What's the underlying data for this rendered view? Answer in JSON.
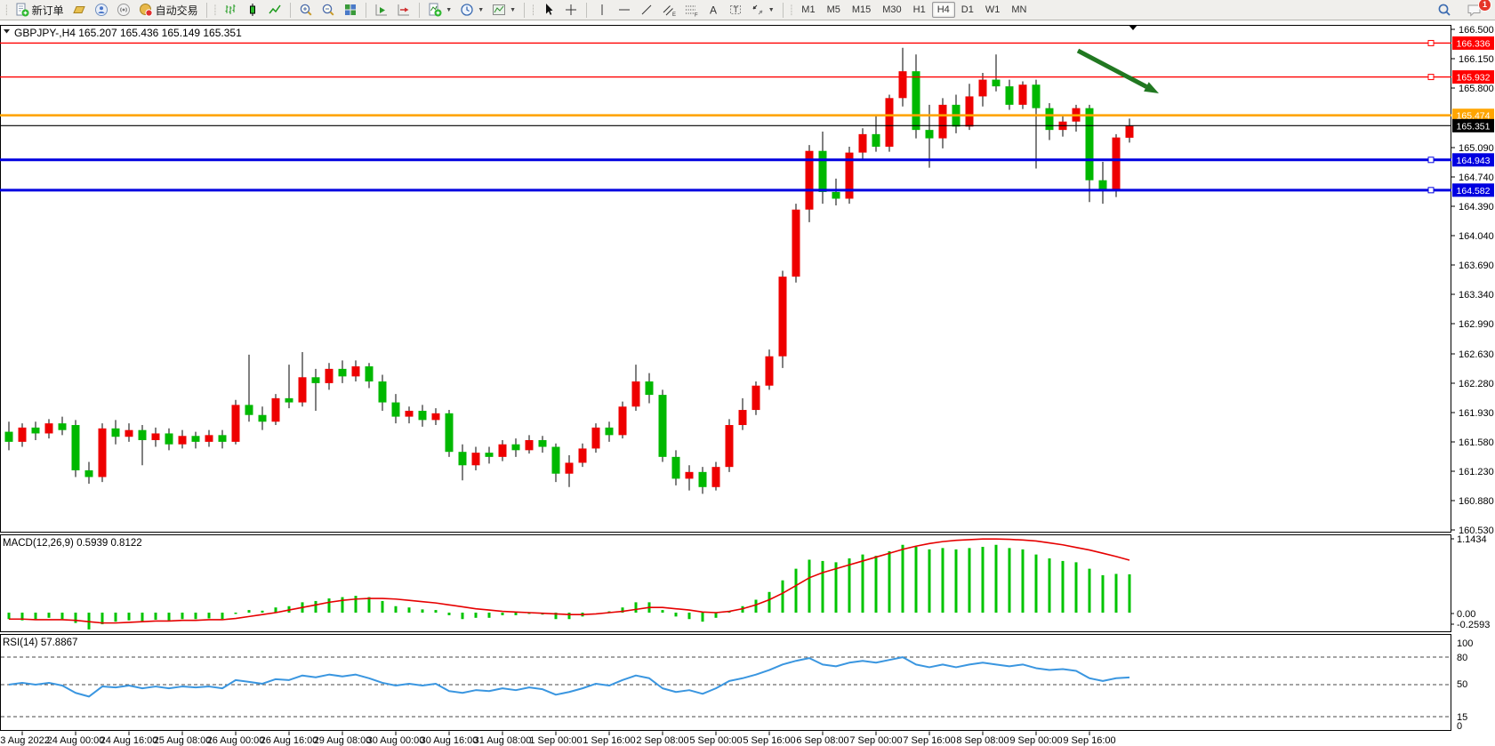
{
  "toolbar": {
    "new_order_label": "新订单",
    "autotrade_label": "自动交易",
    "timeframes": [
      "M1",
      "M5",
      "M15",
      "M30",
      "H1",
      "H4",
      "D1",
      "W1",
      "MN"
    ],
    "active_timeframe": "H4",
    "notification_count": "1"
  },
  "chart": {
    "title": "GBPJPY-,H4  165.207 165.436 165.149 165.351",
    "macd_label": "MACD(12,26,9) 0.5939 0.8122",
    "rsi_label": "RSI(14) 57.8867"
  },
  "chart_data": {
    "type": "candlestick",
    "symbol": "GBPJPY-",
    "timeframe": "H4",
    "ohlc_current": {
      "open": 165.207,
      "high": 165.436,
      "low": 165.149,
      "close": 165.351
    },
    "colors": {
      "bull": "#ee0000",
      "bear": "#00b800",
      "wick": "#000000",
      "macd_bar": "#00c400",
      "macd_signal": "#e60000",
      "rsi_line": "#3a96e0",
      "annotation_arrow": "#217821",
      "level_red": "#ff0000",
      "level_orange": "#ffa500",
      "level_blue": "#0000e0",
      "current_price": "#000000"
    },
    "price_axis_ticks": [
      "166.500",
      "166.150",
      "165.800",
      "165.090",
      "164.740",
      "164.390",
      "164.040",
      "163.690",
      "163.340",
      "162.990",
      "162.630",
      "162.280",
      "161.930",
      "161.580",
      "161.230",
      "160.880",
      "160.530"
    ],
    "dates": [
      "23 Aug 2022",
      "24 Aug 00:00",
      "24 Aug 16:00",
      "25 Aug 08:00",
      "26 Aug 00:00",
      "26 Aug 16:00",
      "29 Aug 08:00",
      "30 Aug 00:00",
      "30 Aug 16:00",
      "31 Aug 08:00",
      "1 Sep 00:00",
      "1 Sep 16:00",
      "2 Sep 08:00",
      "5 Sep 00:00",
      "5 Sep 16:00",
      "6 Sep 08:00",
      "7 Sep 00:00",
      "7 Sep 16:00",
      "8 Sep 08:00",
      "9 Sep 00:00",
      "9 Sep 16:00"
    ],
    "levels": [
      {
        "label": "166.336",
        "value": 166.336,
        "color": "#ff0000",
        "width": 1.4,
        "handle": true
      },
      {
        "label": "165.932",
        "value": 165.932,
        "color": "#ff0000",
        "width": 1.4,
        "handle": true
      },
      {
        "label": "165.474",
        "value": 165.474,
        "color": "#ffa500",
        "width": 2.6,
        "handle": false
      },
      {
        "label": "165.351",
        "value": 165.351,
        "color": "#000000",
        "width": 1.1,
        "handle": false
      },
      {
        "label": "164.943",
        "value": 164.943,
        "color": "#0000e0",
        "width": 3,
        "handle": true
      },
      {
        "label": "164.582",
        "value": 164.582,
        "color": "#0000e0",
        "width": 3,
        "handle": true
      }
    ],
    "candles": [
      [
        161.7,
        161.82,
        161.48,
        161.58
      ],
      [
        161.58,
        161.8,
        161.52,
        161.75
      ],
      [
        161.75,
        161.82,
        161.6,
        161.68
      ],
      [
        161.68,
        161.85,
        161.62,
        161.8
      ],
      [
        161.8,
        161.88,
        161.66,
        161.72
      ],
      [
        161.78,
        161.84,
        161.16,
        161.24
      ],
      [
        161.24,
        161.34,
        161.08,
        161.16
      ],
      [
        161.16,
        161.8,
        161.1,
        161.74
      ],
      [
        161.74,
        161.84,
        161.55,
        161.64
      ],
      [
        161.64,
        161.8,
        161.58,
        161.72
      ],
      [
        161.72,
        161.78,
        161.3,
        161.6
      ],
      [
        161.6,
        161.75,
        161.52,
        161.68
      ],
      [
        161.68,
        161.74,
        161.48,
        161.55
      ],
      [
        161.55,
        161.72,
        161.5,
        161.65
      ],
      [
        161.65,
        161.7,
        161.5,
        161.58
      ],
      [
        161.58,
        161.72,
        161.52,
        161.66
      ],
      [
        161.66,
        161.72,
        161.5,
        161.58
      ],
      [
        161.58,
        162.08,
        161.55,
        162.02
      ],
      [
        162.02,
        162.62,
        161.82,
        161.9
      ],
      [
        161.9,
        162.0,
        161.72,
        161.82
      ],
      [
        161.82,
        162.15,
        161.78,
        162.1
      ],
      [
        162.1,
        162.5,
        161.98,
        162.05
      ],
      [
        162.05,
        162.65,
        162.0,
        162.35
      ],
      [
        162.35,
        162.45,
        161.95,
        162.28
      ],
      [
        162.28,
        162.52,
        162.2,
        162.45
      ],
      [
        162.45,
        162.55,
        162.28,
        162.36
      ],
      [
        162.36,
        162.55,
        162.3,
        162.48
      ],
      [
        162.48,
        162.52,
        162.22,
        162.3
      ],
      [
        162.3,
        162.38,
        161.95,
        162.05
      ],
      [
        162.05,
        162.15,
        161.8,
        161.88
      ],
      [
        161.88,
        162.0,
        161.8,
        161.95
      ],
      [
        161.95,
        162.02,
        161.76,
        161.84
      ],
      [
        161.84,
        161.98,
        161.78,
        161.92
      ],
      [
        161.92,
        161.96,
        161.4,
        161.46
      ],
      [
        161.46,
        161.55,
        161.12,
        161.3
      ],
      [
        161.3,
        161.52,
        161.24,
        161.45
      ],
      [
        161.45,
        161.52,
        161.32,
        161.4
      ],
      [
        161.4,
        161.6,
        161.35,
        161.55
      ],
      [
        161.55,
        161.62,
        161.4,
        161.48
      ],
      [
        161.48,
        161.66,
        161.44,
        161.6
      ],
      [
        161.6,
        161.65,
        161.45,
        161.52
      ],
      [
        161.52,
        161.56,
        161.1,
        161.2
      ],
      [
        161.2,
        161.42,
        161.04,
        161.33
      ],
      [
        161.33,
        161.56,
        161.28,
        161.5
      ],
      [
        161.5,
        161.8,
        161.45,
        161.75
      ],
      [
        161.75,
        161.82,
        161.58,
        161.66
      ],
      [
        161.66,
        162.06,
        161.62,
        162.0
      ],
      [
        162.0,
        162.5,
        161.95,
        162.3
      ],
      [
        162.3,
        162.4,
        162.04,
        162.14
      ],
      [
        162.14,
        162.2,
        161.34,
        161.4
      ],
      [
        161.4,
        161.48,
        161.06,
        161.14
      ],
      [
        161.14,
        161.3,
        161.0,
        161.22
      ],
      [
        161.22,
        161.28,
        160.96,
        161.04
      ],
      [
        161.04,
        161.34,
        161.0,
        161.28
      ],
      [
        161.28,
        161.85,
        161.22,
        161.78
      ],
      [
        161.78,
        162.1,
        161.72,
        161.96
      ],
      [
        161.96,
        162.3,
        161.9,
        162.25
      ],
      [
        162.25,
        162.68,
        162.2,
        162.6
      ],
      [
        162.6,
        163.62,
        162.46,
        163.55
      ],
      [
        163.55,
        164.42,
        163.48,
        164.35
      ],
      [
        164.35,
        165.12,
        164.2,
        165.05
      ],
      [
        165.05,
        165.28,
        164.42,
        164.56
      ],
      [
        164.56,
        164.72,
        164.4,
        164.48
      ],
      [
        164.48,
        165.1,
        164.42,
        165.03
      ],
      [
        165.03,
        165.32,
        164.94,
        165.25
      ],
      [
        165.25,
        165.46,
        165.04,
        165.1
      ],
      [
        165.1,
        165.72,
        165.04,
        165.68
      ],
      [
        165.68,
        166.28,
        165.58,
        166.0
      ],
      [
        166.0,
        166.2,
        165.2,
        165.3
      ],
      [
        165.3,
        165.6,
        164.85,
        165.2
      ],
      [
        165.2,
        165.68,
        165.08,
        165.6
      ],
      [
        165.6,
        165.72,
        165.26,
        165.34
      ],
      [
        165.34,
        165.85,
        165.3,
        165.7
      ],
      [
        165.7,
        165.98,
        165.58,
        165.9
      ],
      [
        165.9,
        166.2,
        165.76,
        165.82
      ],
      [
        165.82,
        165.9,
        165.54,
        165.6
      ],
      [
        165.6,
        165.88,
        165.55,
        165.84
      ],
      [
        165.84,
        165.9,
        164.84,
        165.56
      ],
      [
        165.56,
        165.62,
        165.18,
        165.3
      ],
      [
        165.3,
        165.48,
        165.22,
        165.4
      ],
      [
        165.4,
        165.6,
        165.28,
        165.56
      ],
      [
        165.56,
        165.6,
        164.44,
        164.7
      ],
      [
        164.7,
        164.92,
        164.42,
        164.58
      ],
      [
        164.58,
        165.25,
        164.5,
        165.21
      ],
      [
        165.207,
        165.436,
        165.149,
        165.351
      ]
    ],
    "macd": {
      "label": "MACD(12,26,9) 0.5939 0.8122",
      "axis_ticks": [
        "1.1434",
        "0.00",
        "-0.2593"
      ],
      "histogram": [
        -0.1,
        -0.12,
        -0.1,
        -0.08,
        -0.1,
        -0.16,
        -0.26,
        -0.18,
        -0.14,
        -0.12,
        -0.13,
        -0.11,
        -0.12,
        -0.1,
        -0.1,
        -0.09,
        -0.1,
        -0.02,
        0.04,
        0.03,
        0.08,
        0.1,
        0.16,
        0.18,
        0.22,
        0.24,
        0.26,
        0.24,
        0.18,
        0.1,
        0.08,
        0.05,
        0.04,
        -0.04,
        -0.1,
        -0.08,
        -0.08,
        -0.04,
        -0.04,
        -0.02,
        -0.03,
        -0.1,
        -0.1,
        -0.06,
        0.0,
        0.02,
        0.08,
        0.16,
        0.16,
        0.04,
        -0.06,
        -0.1,
        -0.14,
        -0.08,
        0.02,
        0.1,
        0.2,
        0.32,
        0.5,
        0.68,
        0.82,
        0.8,
        0.78,
        0.84,
        0.9,
        0.88,
        0.95,
        1.05,
        1.02,
        0.98,
        1.0,
        0.98,
        1.0,
        1.02,
        1.05,
        1.0,
        0.98,
        0.9,
        0.84,
        0.8,
        0.78,
        0.68,
        0.58,
        0.6,
        0.5939
      ],
      "signal": [
        -0.1,
        -0.1,
        -0.11,
        -0.11,
        -0.11,
        -0.12,
        -0.14,
        -0.16,
        -0.16,
        -0.15,
        -0.14,
        -0.13,
        -0.13,
        -0.12,
        -0.12,
        -0.11,
        -0.11,
        -0.09,
        -0.06,
        -0.03,
        0.0,
        0.04,
        0.08,
        0.12,
        0.16,
        0.19,
        0.21,
        0.22,
        0.22,
        0.21,
        0.19,
        0.17,
        0.15,
        0.12,
        0.09,
        0.06,
        0.04,
        0.02,
        0.01,
        0.0,
        -0.01,
        -0.02,
        -0.03,
        -0.03,
        -0.02,
        0.0,
        0.02,
        0.05,
        0.08,
        0.08,
        0.06,
        0.04,
        0.01,
        0.0,
        0.02,
        0.06,
        0.12,
        0.2,
        0.3,
        0.42,
        0.54,
        0.62,
        0.68,
        0.74,
        0.8,
        0.86,
        0.92,
        0.98,
        1.03,
        1.07,
        1.1,
        1.12,
        1.13,
        1.14,
        1.14,
        1.135,
        1.125,
        1.11,
        1.08,
        1.05,
        1.01,
        0.97,
        0.92,
        0.87,
        0.8122
      ]
    },
    "rsi": {
      "label": "RSI(14) 57.8867",
      "axis_ticks": [
        "100",
        "80",
        "50",
        "15",
        "0"
      ],
      "levels": [
        80,
        50,
        15
      ],
      "values": [
        50,
        52,
        50,
        52,
        49,
        41,
        37,
        48,
        47,
        49,
        46,
        48,
        46,
        48,
        47,
        48,
        46,
        55,
        53,
        51,
        56,
        55,
        60,
        58,
        61,
        59,
        61,
        57,
        52,
        49,
        51,
        49,
        51,
        43,
        41,
        44,
        43,
        46,
        44,
        47,
        45,
        39,
        42,
        46,
        51,
        49,
        55,
        60,
        57,
        46,
        42,
        44,
        40,
        46,
        54,
        57,
        61,
        66,
        72,
        76,
        79,
        72,
        70,
        74,
        76,
        74,
        77,
        80,
        72,
        69,
        72,
        69,
        72,
        74,
        72,
        70,
        72,
        68,
        66,
        67,
        65,
        57,
        54,
        57,
        57.89
      ]
    }
  }
}
